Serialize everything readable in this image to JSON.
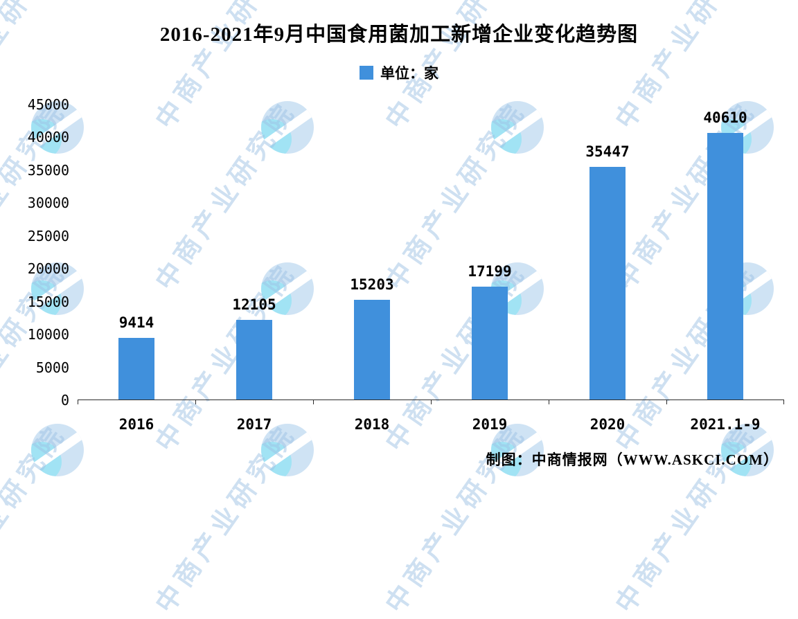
{
  "title": "2016-2021年9月中国食用菌加工新增企业变化趋势图",
  "legend": {
    "label": "单位：家",
    "color": "#4090DC"
  },
  "watermark": {
    "text": "中商产业研究院"
  },
  "attribution": "制图：中商情报网（WWW.ASKCI.COM）",
  "chart_data": {
    "type": "bar",
    "title": "2016-2021年9月中国食用菌加工新增企业变化趋势图",
    "categories": [
      "2016",
      "2017",
      "2018",
      "2019",
      "2020",
      "2021.1-9"
    ],
    "values": [
      9414,
      12105,
      15203,
      17199,
      35447,
      40610
    ],
    "xlabel": "",
    "ylabel": "",
    "ylim": [
      0,
      45000
    ],
    "ytick_step": 5000,
    "bar_color": "#4090DC",
    "legend": "单位：家",
    "legend_position": "top",
    "grid": false
  }
}
